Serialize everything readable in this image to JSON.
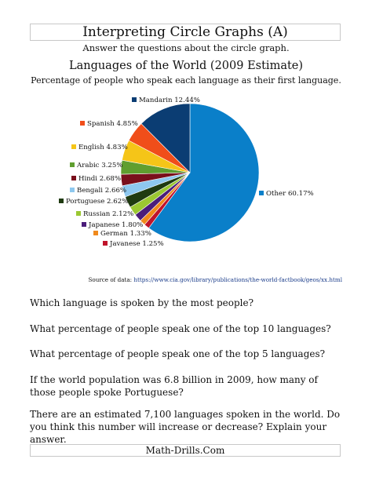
{
  "header": {
    "title": "Interpreting Circle Graphs (A)",
    "instructions": "Answer the questions about the circle graph."
  },
  "chart_data": {
    "type": "pie",
    "title": "Languages of the World (2009 Estimate)",
    "subtitle": "Percentage of people who speak each language as their first language.",
    "slices": [
      {
        "name": "Other",
        "value": 60.17,
        "label": "Other 60.17%",
        "color": "#0a7fc9"
      },
      {
        "name": "Javanese",
        "value": 1.25,
        "label": "Javanese 1.25%",
        "color": "#c0142b"
      },
      {
        "name": "German",
        "value": 1.33,
        "label": "German 1.33%",
        "color": "#f08a1c"
      },
      {
        "name": "Japanese",
        "value": 1.8,
        "label": "Japanese 1.80%",
        "color": "#4b1d7a"
      },
      {
        "name": "Russian",
        "value": 2.12,
        "label": "Russian 2.12%",
        "color": "#9bc832"
      },
      {
        "name": "Portuguese",
        "value": 2.62,
        "label": "Portuguese 2.62%",
        "color": "#1f3a10"
      },
      {
        "name": "Bengali",
        "value": 2.66,
        "label": "Bengali 2.66%",
        "color": "#8ec8ef"
      },
      {
        "name": "Hindi",
        "value": 2.68,
        "label": "Hindi 2.68%",
        "color": "#7a0f1c"
      },
      {
        "name": "Arabic",
        "value": 3.25,
        "label": "Arabic 3.25%",
        "color": "#5f9e2f"
      },
      {
        "name": "English",
        "value": 4.83,
        "label": "English 4.83%",
        "color": "#f5c518"
      },
      {
        "name": "Spanish",
        "value": 4.85,
        "label": "Spanish 4.85%",
        "color": "#f04e1a"
      },
      {
        "name": "Mandarin",
        "value": 12.44,
        "label": "Mandarin 12.44%",
        "color": "#0b3d73"
      }
    ]
  },
  "source": {
    "prefix": "Source of data: ",
    "url": "https://www.cia.gov/library/publications/the-world-factbook/geos/xx.html"
  },
  "questions": [
    "Which language is spoken by the most people?",
    "What percentage of people speak one of the top 10 languages?",
    "What percentage of people speak one of the top 5 languages?",
    "If the world population was 6.8 billion in 2009, how many of those people spoke Portuguese?",
    "There are an estimated 7,100 languages spoken in the world. Do you think this number will increase or decrease? Explain your answer."
  ],
  "footer": {
    "text": "Math-Drills.Com"
  }
}
